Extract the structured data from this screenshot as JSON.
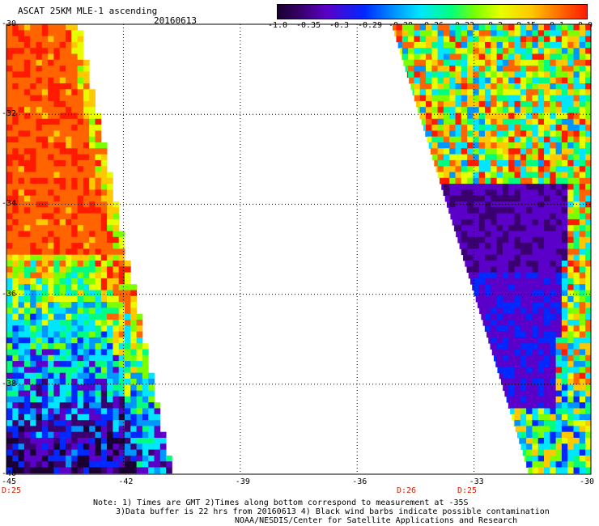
{
  "header": {
    "title": "ASCAT 25KM MLE-1 ascending",
    "date": "20160613"
  },
  "colorbar": {
    "labels": [
      "-1.0",
      "-0.35",
      "-0.3",
      "-0.29",
      "-0.28",
      "-0.26",
      "-0.23",
      "-0.2",
      "-0.15",
      "-0.1",
      "0.0"
    ]
  },
  "axes": {
    "x_ticks": [
      "-45",
      "-42",
      "-39",
      "-36",
      "-33",
      "-30"
    ],
    "y_ticks": [
      "-30",
      "-32",
      "-34",
      "-36",
      "-38",
      "-40"
    ]
  },
  "time_labels": [
    "D:25",
    "D:26",
    "D:25"
  ],
  "notes": {
    "line1": "Note: 1) Times are GMT 2)Times along bottom correspond to measurement at -35S",
    "line2": "3)Data buffer is 22 hrs from 20160613 4) Black wind barbs indicate possible contamination",
    "line3": "NOAA/NESDIS/Center for Satellite Applications and Research"
  },
  "colors": {
    "palette": [
      "#1a0030",
      "#3a0070",
      "#5a00c8",
      "#0028ff",
      "#0096ff",
      "#00e6ff",
      "#00ff80",
      "#7cff00",
      "#e6ff00",
      "#ffc800",
      "#ff6400",
      "#ff1a00"
    ]
  }
}
